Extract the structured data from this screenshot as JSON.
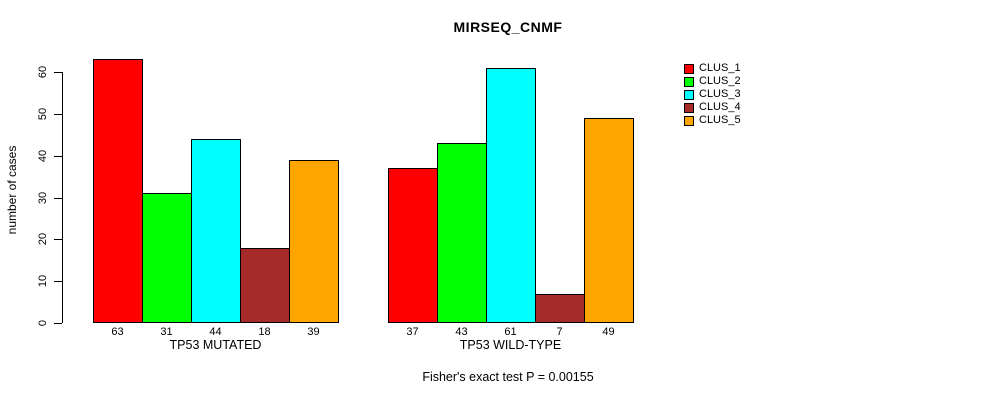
{
  "chart": {
    "title": "MIRSEQ_CNMF",
    "ylabel": "number of cases",
    "annotation": "Fisher's exact test P = 0.00155"
  },
  "chart_data": {
    "type": "bar",
    "title": "MIRSEQ_CNMF",
    "xlabel": "",
    "ylabel": "number of cases",
    "ylim": [
      0,
      60
    ],
    "yticks": [
      0,
      10,
      20,
      30,
      40,
      50,
      60
    ],
    "grid": false,
    "legend_position": "top-right",
    "series_labels": [
      "CLUS_1",
      "CLUS_2",
      "CLUS_3",
      "CLUS_4",
      "CLUS_5"
    ],
    "colors": [
      "#FF0000",
      "#00FF00",
      "#00FFFF",
      "#A52A2A",
      "#FFA500"
    ],
    "groups": [
      {
        "label": "TP53 MUTATED",
        "values": [
          63,
          31,
          44,
          18,
          39
        ]
      },
      {
        "label": "TP53 WILD-TYPE",
        "values": [
          37,
          43,
          61,
          7,
          49
        ]
      }
    ],
    "annotation": "Fisher's exact test P = 0.00155"
  }
}
